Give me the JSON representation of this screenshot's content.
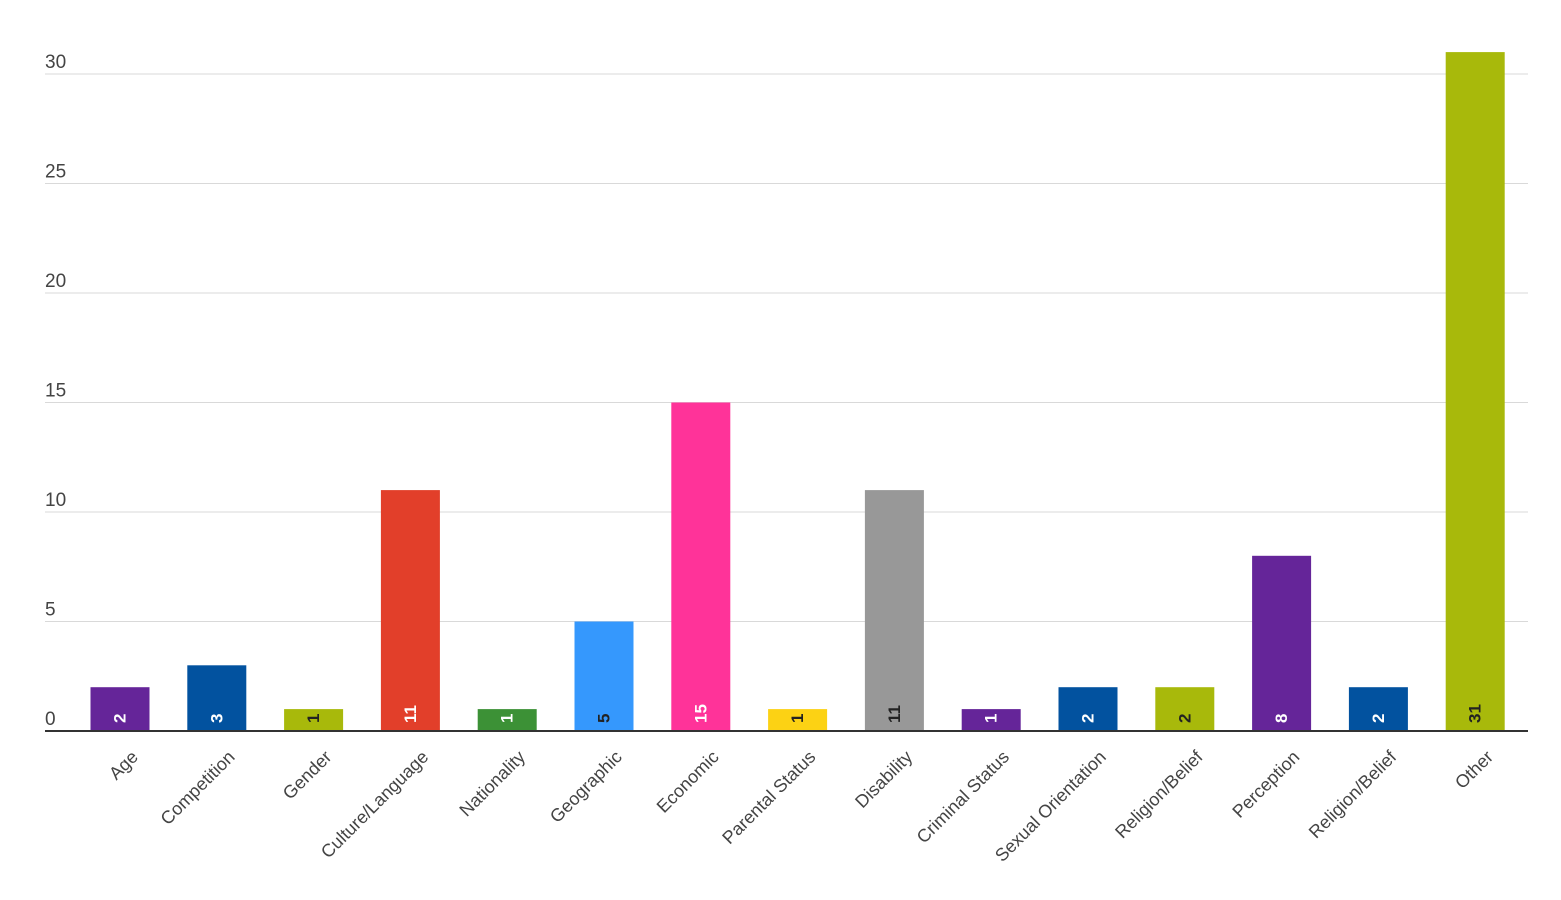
{
  "chart_data": {
    "type": "bar",
    "title": "",
    "xlabel": "",
    "ylabel": "",
    "ylim": [
      0,
      31
    ],
    "yticks": [
      0,
      5,
      10,
      15,
      20,
      25,
      30
    ],
    "grid": true,
    "legend": "none",
    "categories": [
      "Age",
      "Competition",
      "Gender",
      "Culture/Language",
      "Nationality",
      "Geographic",
      "Economic",
      "Parental Status",
      "Disability",
      "Criminal Status",
      "Sexual Orientation",
      "Religion/Belief",
      "Perception",
      "Religion/Belief",
      "Other"
    ],
    "values": [
      2,
      3,
      1,
      11,
      1,
      5,
      15,
      1,
      11,
      1,
      2,
      2,
      8,
      2,
      31
    ],
    "colors": [
      "#652599",
      "#02529f",
      "#a8b90b",
      "#e23f2a",
      "#3c9136",
      "#3598fd",
      "#ff3399",
      "#fcd214",
      "#989898",
      "#652599",
      "#02529f",
      "#a8b90b",
      "#652599",
      "#02529f",
      "#a8b90b"
    ],
    "label_colors": [
      "#ffffff",
      "#ffffff",
      "#222222",
      "#ffffff",
      "#ffffff",
      "#222222",
      "#ffffff",
      "#222222",
      "#222222",
      "#ffffff",
      "#ffffff",
      "#222222",
      "#ffffff",
      "#ffffff",
      "#222222"
    ]
  }
}
